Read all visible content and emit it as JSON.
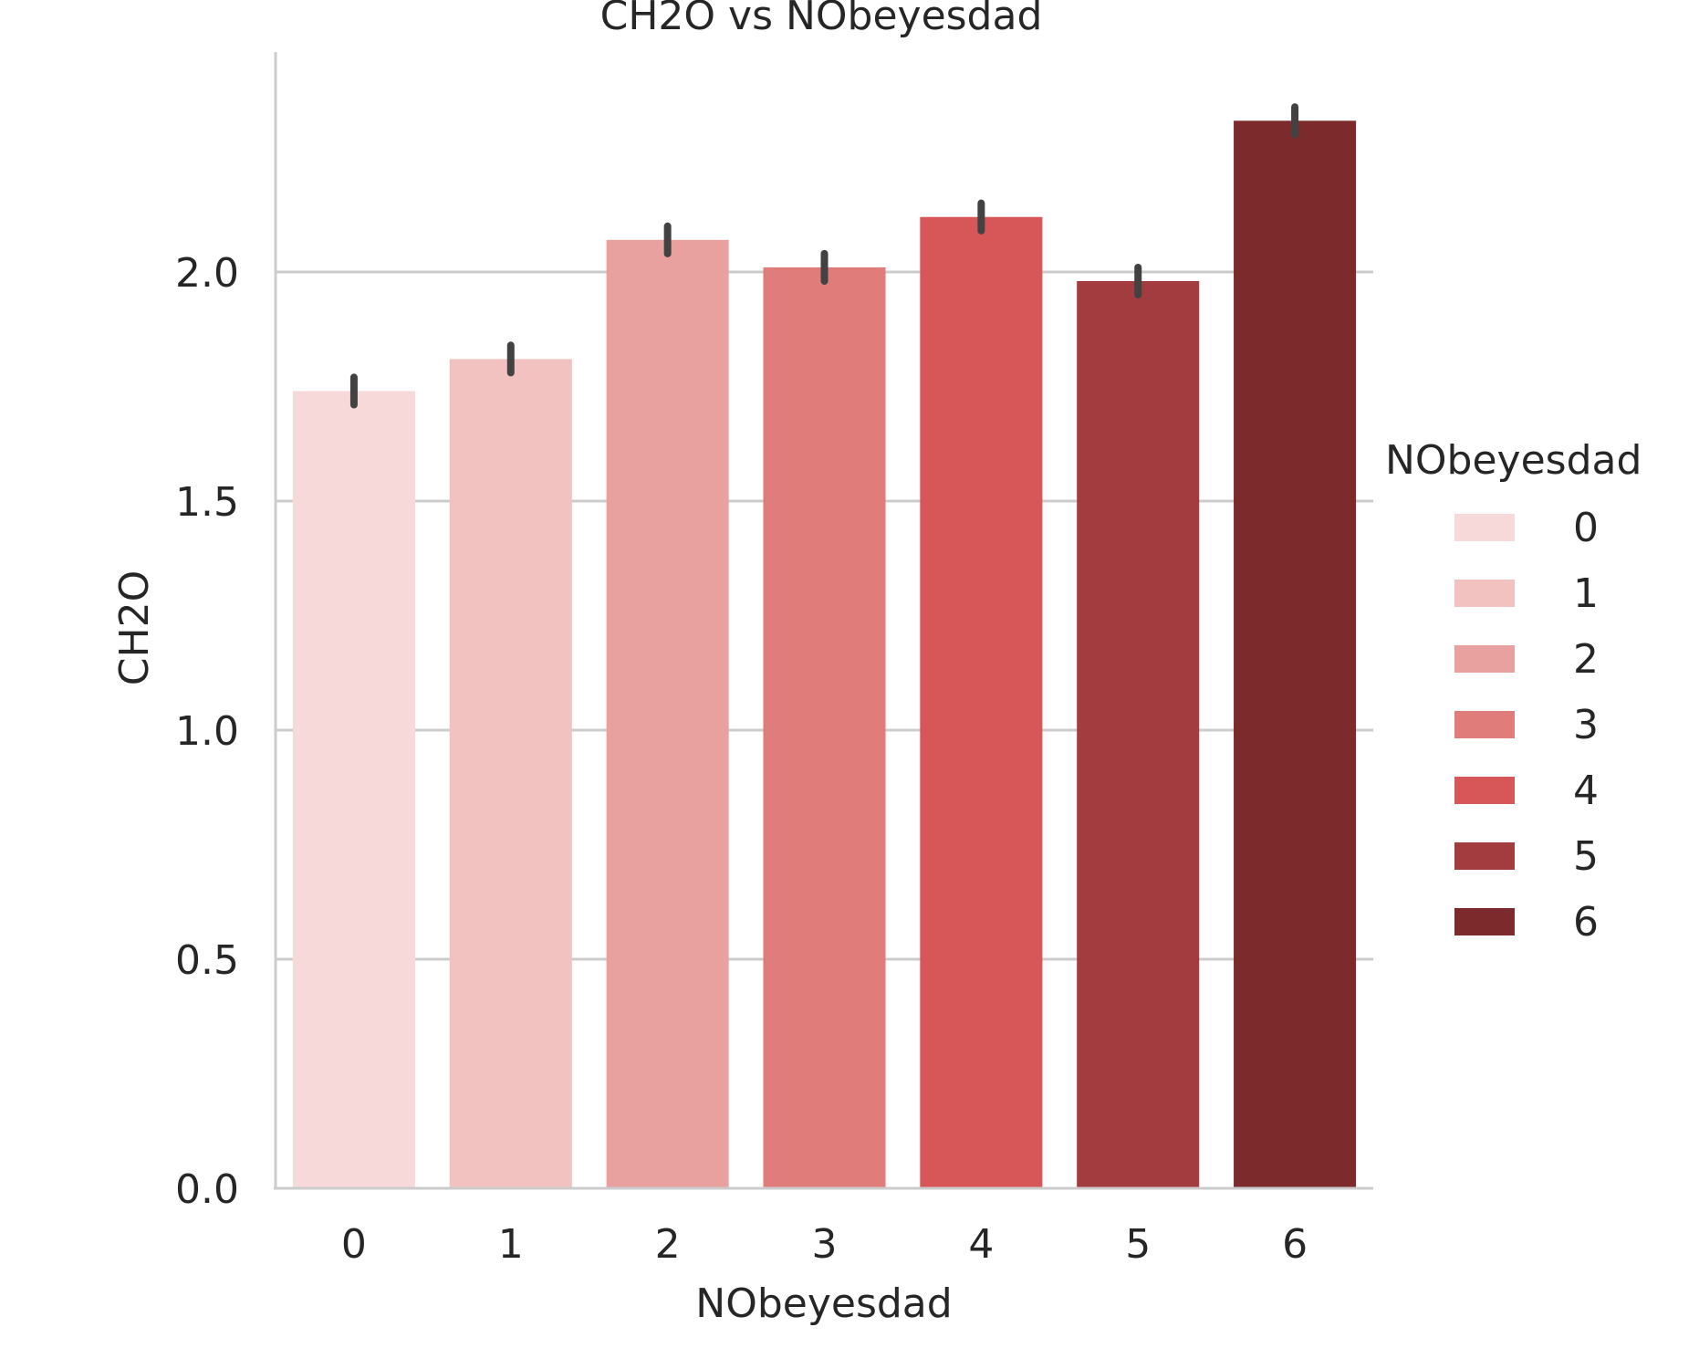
{
  "chart_data": {
    "type": "bar",
    "title": "CH2O vs NObeyesdad",
    "xlabel": "NObeyesdad",
    "ylabel": "CH2O",
    "categories": [
      "0",
      "1",
      "2",
      "3",
      "4",
      "5",
      "6"
    ],
    "values": [
      1.74,
      1.81,
      2.07,
      2.01,
      2.12,
      1.98,
      2.33
    ],
    "error_bars": [
      [
        1.71,
        1.77
      ],
      [
        1.78,
        1.84
      ],
      [
        2.04,
        2.1
      ],
      [
        1.98,
        2.04
      ],
      [
        2.09,
        2.15
      ],
      [
        1.95,
        2.01
      ],
      [
        2.3,
        2.36
      ]
    ],
    "colors": [
      "#f8d9da",
      "#f2c2c1",
      "#e9a19f",
      "#e07c7a",
      "#d75758",
      "#a33c3e",
      "#7d2a2c"
    ],
    "ylim": [
      0,
      2.48
    ],
    "yticks": [
      0.0,
      0.5,
      1.0,
      1.5,
      2.0
    ],
    "ytick_labels": [
      "0.0",
      "0.5",
      "1.0",
      "1.5",
      "2.0"
    ],
    "grid": "horizontal",
    "legend": {
      "title": "NObeyesdad",
      "placement": "right",
      "entries": [
        "0",
        "1",
        "2",
        "3",
        "4",
        "5",
        "6"
      ]
    }
  }
}
